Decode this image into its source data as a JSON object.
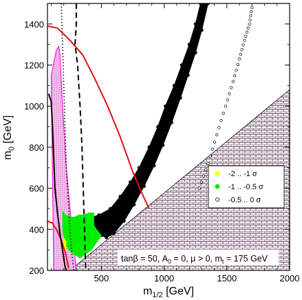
{
  "chart_data": {
    "type": "scatter",
    "x_unit_label": "GeV",
    "y_unit_label": "GeV",
    "xlim": [
      70,
      2000
    ],
    "ylim": [
      200,
      1500
    ],
    "x_ticks": [
      500,
      1000,
      1500,
      2000
    ],
    "y_ticks": [
      200,
      400,
      600,
      800,
      1000,
      1200,
      1400
    ],
    "x_tick_labels": [
      "500",
      "1000",
      "1500",
      "2000"
    ],
    "y_tick_labels": [
      "200",
      "400",
      "600",
      "800",
      "1000",
      "1200",
      "1400"
    ],
    "xlabel_main": "m",
    "xlabel_sub": "1/2",
    "xlabel_unit": " [GeV]",
    "ylabel_main": "m",
    "ylabel_sub": "0",
    "ylabel_unit": " [GeV]",
    "annotation": {
      "part1": "tanβ = 50, A",
      "sub1": "0",
      "part2": " = 0, μ > 0, m",
      "sub2": "t",
      "part3": " = 175 GeV"
    },
    "legend": [
      {
        "label": "-2 .. -1 σ",
        "color": "#ffff00",
        "marker": "filled"
      },
      {
        "label": "-1 .. -0.5 σ",
        "color": "#00ee00",
        "marker": "filled"
      },
      {
        "label": "-0.5 .. 0 σ",
        "color": "#000000",
        "marker": "open"
      }
    ],
    "regions": {
      "excluded_triangle": [
        [
          250,
          200
        ],
        [
          2000,
          1080
        ],
        [
          2000,
          200
        ]
      ],
      "pink_region": [
        [
          120,
          200
        ],
        [
          100,
          1150
        ],
        [
          140,
          1270
        ],
        [
          160,
          1290
        ],
        [
          170,
          1250
        ],
        [
          190,
          1000
        ],
        [
          220,
          700
        ],
        [
          250,
          500
        ],
        [
          280,
          320
        ],
        [
          300,
          200
        ]
      ],
      "green_region": [
        [
          190,
          490
        ],
        [
          210,
          470
        ],
        [
          260,
          460
        ],
        [
          290,
          460
        ],
        [
          320,
          470
        ],
        [
          360,
          470
        ],
        [
          400,
          480
        ],
        [
          440,
          480
        ],
        [
          440,
          420
        ],
        [
          460,
          400
        ],
        [
          500,
          370
        ],
        [
          420,
          300
        ],
        [
          330,
          260
        ],
        [
          280,
          280
        ],
        [
          240,
          300
        ],
        [
          210,
          330
        ],
        [
          190,
          400
        ]
      ],
      "yellow_region": [
        [
          190,
          300
        ],
        [
          215,
          300
        ],
        [
          220,
          340
        ],
        [
          200,
          360
        ],
        [
          190,
          340
        ]
      ]
    },
    "black_band": {
      "left": [
        [
          380,
          450
        ],
        [
          480,
          470
        ],
        [
          570,
          500
        ],
        [
          650,
          560
        ],
        [
          730,
          630
        ],
        [
          800,
          700
        ],
        [
          880,
          800
        ],
        [
          950,
          900
        ],
        [
          1010,
          1000
        ],
        [
          1080,
          1100
        ],
        [
          1140,
          1200
        ],
        [
          1200,
          1300
        ],
        [
          1250,
          1400
        ],
        [
          1290,
          1500
        ]
      ],
      "right": [
        [
          500,
          370
        ],
        [
          540,
          360
        ],
        [
          600,
          380
        ],
        [
          680,
          440
        ],
        [
          760,
          520
        ],
        [
          840,
          610
        ],
        [
          920,
          710
        ],
        [
          990,
          810
        ],
        [
          1060,
          920
        ],
        [
          1130,
          1040
        ],
        [
          1190,
          1150
        ],
        [
          1250,
          1260
        ],
        [
          1300,
          1370
        ],
        [
          1350,
          1500
        ]
      ]
    },
    "open_dots_series": [
      [
        1280,
        600
      ],
      [
        1350,
        720
      ],
      [
        1420,
        860
      ],
      [
        1490,
        1000
      ],
      [
        1550,
        1120
      ],
      [
        1600,
        1230
      ],
      [
        1640,
        1320
      ],
      [
        1680,
        1400
      ],
      [
        1700,
        1480
      ]
    ],
    "lines": {
      "red_main": [
        [
          70,
          1390
        ],
        [
          150,
          1380
        ],
        [
          250,
          1320
        ],
        [
          350,
          1250
        ],
        [
          450,
          1130
        ],
        [
          550,
          1000
        ],
        [
          650,
          850
        ],
        [
          750,
          680
        ],
        [
          820,
          580
        ],
        [
          880,
          500
        ]
      ],
      "red_lower": [
        [
          70,
          440
        ],
        [
          110,
          430
        ],
        [
          150,
          390
        ],
        [
          185,
          340
        ],
        [
          215,
          280
        ],
        [
          240,
          210
        ]
      ],
      "dashed_black": [
        [
          300,
          1500
        ],
        [
          300,
          1400
        ],
        [
          290,
          1300
        ],
        [
          310,
          1200
        ],
        [
          330,
          1000
        ],
        [
          345,
          800
        ],
        [
          355,
          600
        ],
        [
          365,
          400
        ],
        [
          375,
          200
        ]
      ],
      "dotted_black": [
        [
          180,
          1500
        ],
        [
          190,
          1300
        ],
        [
          200,
          1100
        ],
        [
          210,
          900
        ],
        [
          220,
          700
        ],
        [
          240,
          500
        ],
        [
          260,
          300
        ],
        [
          280,
          200
        ]
      ],
      "solid_black": [
        [
          80,
          1060
        ],
        [
          100,
          1020
        ],
        [
          110,
          900
        ],
        [
          120,
          750
        ],
        [
          130,
          600
        ],
        [
          150,
          480
        ],
        [
          170,
          380
        ],
        [
          190,
          300
        ],
        [
          210,
          220
        ],
        [
          220,
          200
        ]
      ]
    }
  }
}
